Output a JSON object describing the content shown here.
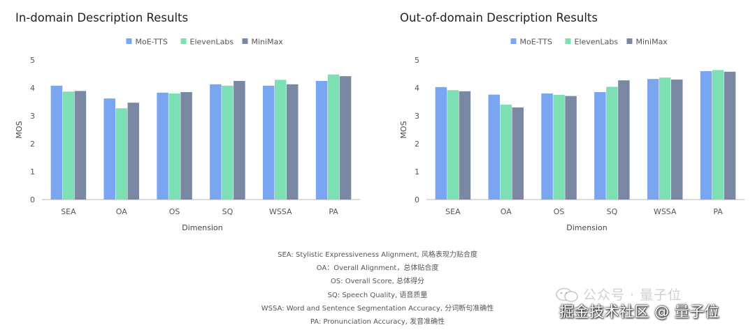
{
  "colors": {
    "moe": "#7aa5f0",
    "eleven": "#7de0b4",
    "minimax": "#7b88a3",
    "axis": "#b8b8b8",
    "grid": "#e8e8e8"
  },
  "chart_data": [
    {
      "type": "bar",
      "title": "In-domain Description Results",
      "xlabel": "Dimension",
      "ylabel": "MOS",
      "ylim": [
        0,
        5
      ],
      "yticks": [
        0,
        1,
        2,
        3,
        4,
        5
      ],
      "legend_position": "top-center",
      "categories": [
        "SEA",
        "OA",
        "OS",
        "SQ",
        "WSSA",
        "PA"
      ],
      "series": [
        {
          "name": "MoE-TTS",
          "values": [
            4.08,
            3.62,
            3.83,
            4.13,
            4.08,
            4.25
          ]
        },
        {
          "name": "ElevenLabs",
          "values": [
            3.87,
            3.27,
            3.8,
            4.08,
            4.29,
            4.48
          ]
        },
        {
          "name": "MiniMax",
          "values": [
            3.89,
            3.47,
            3.85,
            4.25,
            4.13,
            4.42
          ]
        }
      ]
    },
    {
      "type": "bar",
      "title": "Out-of-domain Description Results",
      "xlabel": "Dimension",
      "ylabel": "MOS",
      "ylim": [
        0,
        5
      ],
      "yticks": [
        0,
        1,
        2,
        3,
        4,
        5
      ],
      "legend_position": "top-center",
      "categories": [
        "SEA",
        "OA",
        "OS",
        "SQ",
        "WSSA",
        "PA"
      ],
      "series": [
        {
          "name": "MoE-TTS",
          "values": [
            4.03,
            3.76,
            3.8,
            3.85,
            4.32,
            4.6
          ]
        },
        {
          "name": "ElevenLabs",
          "values": [
            3.92,
            3.4,
            3.75,
            4.04,
            4.37,
            4.64
          ]
        },
        {
          "name": "MiniMax",
          "values": [
            3.88,
            3.3,
            3.71,
            4.27,
            4.3,
            4.58
          ]
        }
      ]
    }
  ],
  "footnotes": [
    "SEA: Stylistic Expressiveness Alignment, 风格表现力贴合度",
    "OA：Overall Alignment，总体贴合度",
    "OS: Overall Score, 总体得分",
    "SQ: Speech Quality, 语音质量",
    "WSSA: Word and Sentence Segmentation Accuracy, 分词断句准确性",
    "PA: Pronunciation Accuracy, 发音准确性"
  ],
  "watermark": {
    "top_text": "公众号 · 量子位",
    "bottom_text": "掘金技术社区 @ 量子位"
  }
}
